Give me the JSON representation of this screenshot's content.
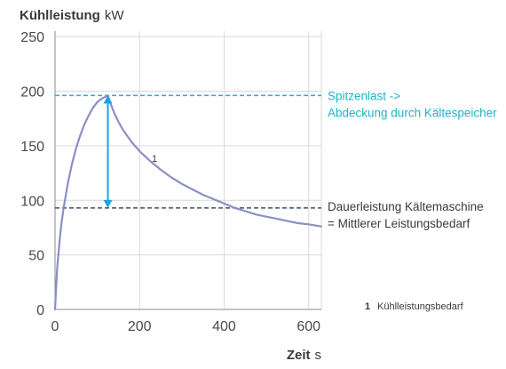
{
  "chart_data": {
    "type": "line",
    "title": {
      "bold": "Kühlleistung",
      "unit": "kW"
    },
    "xlabel": {
      "bold": "Zeit",
      "unit": "s"
    },
    "xlim": [
      0,
      630
    ],
    "ylim": [
      0,
      255
    ],
    "x_ticks": [
      "0",
      "200",
      "400",
      "600"
    ],
    "y_ticks": [
      "0",
      "50",
      "100",
      "150",
      "200",
      "250"
    ],
    "grid": true,
    "series": [
      {
        "name": "Kühlleistungsbedarf",
        "label": "1",
        "color": "#8b8fc4",
        "x": [
          0,
          5,
          10,
          15,
          20,
          30,
          40,
          50,
          60,
          70,
          80,
          90,
          100,
          110,
          120,
          125,
          130,
          140,
          150,
          160,
          180,
          200,
          225,
          250,
          275,
          300,
          325,
          350,
          375,
          400,
          425,
          450,
          475,
          500,
          525,
          550,
          575,
          600,
          630
        ],
        "y": [
          0,
          38,
          60,
          78,
          92,
          115,
          133,
          148,
          160,
          170,
          178,
          185,
          190,
          193,
          195,
          196,
          190,
          180,
          172,
          165,
          154,
          145,
          136,
          128,
          121,
          115,
          110,
          105,
          101,
          97,
          93,
          90,
          87,
          85,
          83,
          81,
          79,
          78,
          76
        ]
      }
    ],
    "reference_lines": [
      {
        "y": 196,
        "color": "#1fb3c9",
        "label_lines": [
          "Spitzenlast ->",
          "Abdeckung durch Kältespeicher"
        ]
      },
      {
        "y": 93,
        "color": "#3c5370",
        "label_lines": [
          "Dauerleistung Kältemaschine",
          "= Mittlerer Leistungsbedarf"
        ]
      }
    ],
    "arrow": {
      "x": 125,
      "y_from": 93,
      "y_to": 196,
      "color": "#1fa3de"
    },
    "legend": {
      "number": "1",
      "text": "Kühlleistungsbedarf"
    }
  }
}
